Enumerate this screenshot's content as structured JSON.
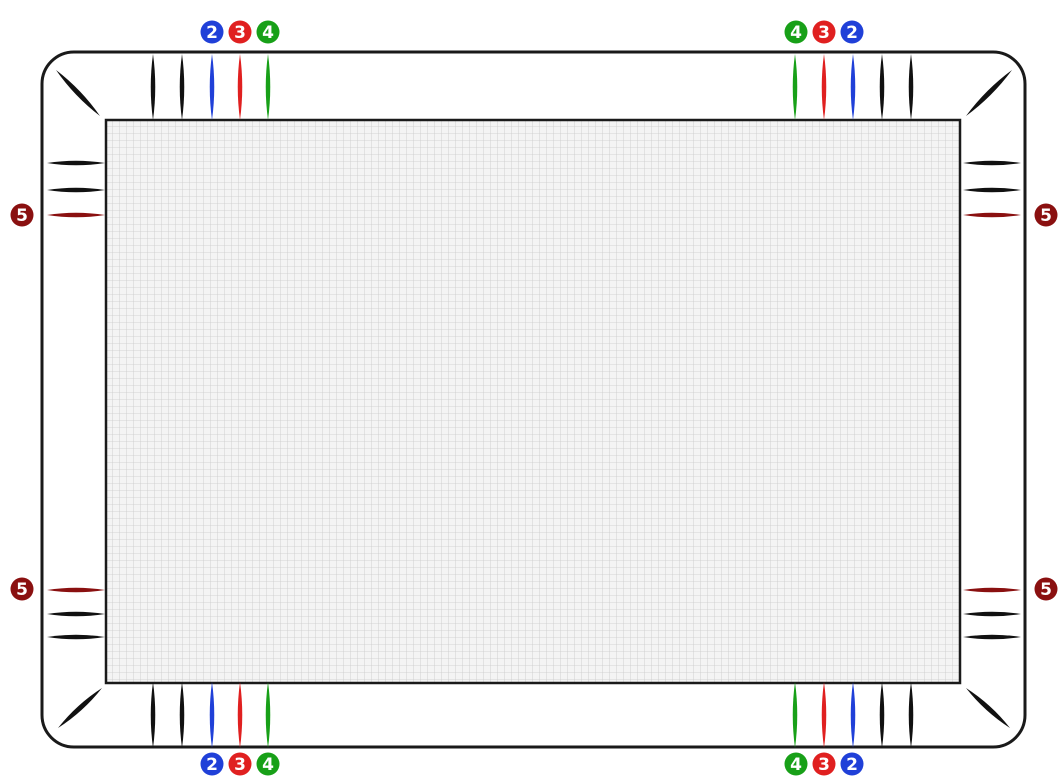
{
  "colors": {
    "frame": "#1a1a1a",
    "grid_line": "#c9c9c9",
    "grid_background": "#f4f4f4",
    "black_marker": "#111111",
    "blue_marker": "#2040d8",
    "red_marker": "#e02020",
    "green_marker": "#18a018",
    "darkred_marker": "#8a1010",
    "badge_text": "#ffffff"
  },
  "badges": [
    {
      "label": "2",
      "color": "blue_marker"
    },
    {
      "label": "3",
      "color": "red_marker"
    },
    {
      "label": "4",
      "color": "green_marker"
    },
    {
      "label": "5",
      "color": "darkred_marker"
    }
  ],
  "marker_groups": {
    "top_bottom_sequence_left": [
      "black_marker",
      "black_marker",
      "blue_marker",
      "red_marker",
      "green_marker"
    ],
    "top_bottom_sequence_right": [
      "green_marker",
      "red_marker",
      "blue_marker",
      "black_marker",
      "black_marker"
    ],
    "side_sequence_top": [
      "black_marker",
      "black_marker",
      "darkred_marker"
    ],
    "side_sequence_bottom": [
      "darkred_marker",
      "black_marker",
      "black_marker"
    ]
  }
}
